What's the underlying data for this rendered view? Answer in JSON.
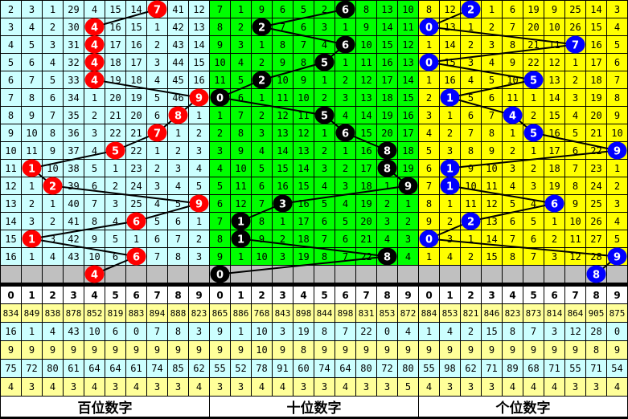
{
  "chart_data": {
    "type": "table",
    "header_digits": [
      "0",
      "1",
      "2",
      "3",
      "4",
      "5",
      "6",
      "7",
      "8",
      "9"
    ],
    "sections": [
      {
        "title": "百位数字",
        "bg": "#ccffff",
        "ball_color": "#ff0000",
        "rows": [
          [
            2,
            3,
            1,
            29,
            4,
            15,
            14,
            null,
            41,
            12
          ],
          [
            3,
            4,
            2,
            30,
            null,
            16,
            15,
            1,
            42,
            13
          ],
          [
            4,
            5,
            3,
            31,
            null,
            17,
            16,
            2,
            43,
            14
          ],
          [
            5,
            6,
            4,
            32,
            null,
            18,
            17,
            3,
            44,
            15
          ],
          [
            6,
            7,
            5,
            33,
            null,
            19,
            18,
            4,
            45,
            16
          ],
          [
            7,
            8,
            6,
            34,
            1,
            20,
            19,
            5,
            46,
            null
          ],
          [
            8,
            9,
            7,
            35,
            2,
            21,
            20,
            6,
            null,
            1
          ],
          [
            9,
            10,
            8,
            36,
            3,
            22,
            21,
            null,
            1,
            2
          ],
          [
            10,
            11,
            9,
            37,
            4,
            null,
            22,
            1,
            2,
            3
          ],
          [
            11,
            null,
            10,
            38,
            5,
            1,
            23,
            2,
            3,
            4
          ],
          [
            12,
            1,
            null,
            39,
            6,
            2,
            24,
            3,
            4,
            5
          ],
          [
            13,
            2,
            1,
            40,
            7,
            3,
            25,
            4,
            5,
            null
          ],
          [
            14,
            3,
            2,
            41,
            8,
            4,
            null,
            5,
            6,
            1
          ],
          [
            15,
            null,
            3,
            42,
            9,
            5,
            1,
            6,
            7,
            2
          ],
          [
            16,
            1,
            4,
            43,
            10,
            6,
            null,
            7,
            8,
            3
          ]
        ],
        "hits": [
          7,
          4,
          4,
          4,
          4,
          9,
          8,
          7,
          5,
          1,
          2,
          9,
          6,
          1,
          6,
          4
        ],
        "stats": [
          [
            834,
            849,
            838,
            878,
            852,
            819,
            883,
            894,
            888,
            823
          ],
          [
            16,
            1,
            4,
            43,
            10,
            6,
            0,
            7,
            8,
            3
          ],
          [
            9,
            9,
            9,
            9,
            9,
            9,
            9,
            9,
            9,
            9
          ],
          [
            75,
            72,
            80,
            61,
            64,
            64,
            61,
            74,
            85,
            62
          ],
          [
            4,
            3,
            4,
            3,
            4,
            3,
            4,
            3,
            3,
            4
          ]
        ]
      },
      {
        "title": "十位数字",
        "bg": "#00ff00",
        "ball_color": "#000000",
        "rows": [
          [
            7,
            1,
            9,
            6,
            5,
            2,
            null,
            8,
            13,
            10
          ],
          [
            8,
            2,
            null,
            7,
            6,
            3,
            1,
            9,
            14,
            11
          ],
          [
            9,
            3,
            1,
            8,
            7,
            4,
            null,
            10,
            15,
            12
          ],
          [
            10,
            4,
            2,
            9,
            8,
            null,
            1,
            11,
            16,
            13
          ],
          [
            11,
            5,
            null,
            10,
            9,
            1,
            2,
            12,
            17,
            14
          ],
          [
            null,
            6,
            1,
            11,
            10,
            2,
            3,
            13,
            18,
            15
          ],
          [
            1,
            7,
            2,
            12,
            11,
            null,
            4,
            14,
            19,
            16
          ],
          [
            2,
            8,
            3,
            13,
            12,
            1,
            null,
            15,
            20,
            17
          ],
          [
            3,
            9,
            4,
            14,
            13,
            2,
            1,
            16,
            null,
            18
          ],
          [
            4,
            10,
            5,
            15,
            14,
            3,
            2,
            17,
            null,
            19
          ],
          [
            5,
            11,
            6,
            16,
            15,
            4,
            3,
            18,
            1,
            null
          ],
          [
            6,
            12,
            7,
            null,
            16,
            5,
            4,
            19,
            2,
            1
          ],
          [
            7,
            null,
            8,
            1,
            17,
            6,
            5,
            20,
            3,
            2
          ],
          [
            8,
            null,
            9,
            2,
            18,
            7,
            6,
            21,
            4,
            3
          ],
          [
            9,
            1,
            10,
            3,
            19,
            8,
            7,
            22,
            null,
            4
          ]
        ],
        "hits": [
          6,
          2,
          6,
          5,
          2,
          0,
          5,
          6,
          8,
          8,
          9,
          3,
          1,
          1,
          8,
          0
        ],
        "stats": [
          [
            865,
            886,
            768,
            843,
            898,
            844,
            898,
            831,
            853,
            872
          ],
          [
            9,
            1,
            10,
            3,
            19,
            8,
            7,
            22,
            0,
            4
          ],
          [
            9,
            9,
            10,
            9,
            8,
            9,
            9,
            9,
            9,
            9
          ],
          [
            55,
            52,
            78,
            91,
            60,
            74,
            64,
            80,
            72,
            80
          ],
          [
            3,
            3,
            4,
            4,
            3,
            3,
            4,
            3,
            3,
            5
          ]
        ]
      },
      {
        "title": "个位数字",
        "bg": "#ffff00",
        "ball_color": "#0000ff",
        "rows": [
          [
            8,
            12,
            null,
            1,
            6,
            19,
            9,
            25,
            14,
            3
          ],
          [
            null,
            13,
            1,
            2,
            7,
            20,
            10,
            26,
            15,
            4
          ],
          [
            1,
            14,
            2,
            3,
            8,
            21,
            11,
            null,
            16,
            5
          ],
          [
            null,
            15,
            3,
            4,
            9,
            22,
            12,
            1,
            17,
            6
          ],
          [
            1,
            16,
            4,
            5,
            10,
            null,
            13,
            2,
            18,
            7
          ],
          [
            2,
            null,
            5,
            6,
            11,
            1,
            14,
            3,
            19,
            8
          ],
          [
            3,
            1,
            6,
            7,
            null,
            2,
            15,
            4,
            20,
            9
          ],
          [
            4,
            2,
            7,
            8,
            1,
            null,
            16,
            5,
            21,
            10
          ],
          [
            5,
            3,
            8,
            9,
            2,
            1,
            17,
            6,
            22,
            null
          ],
          [
            6,
            null,
            9,
            10,
            3,
            2,
            18,
            7,
            23,
            1
          ],
          [
            7,
            null,
            10,
            11,
            4,
            3,
            19,
            8,
            24,
            2
          ],
          [
            8,
            1,
            11,
            12,
            5,
            4,
            null,
            9,
            25,
            3
          ],
          [
            9,
            2,
            null,
            13,
            6,
            5,
            1,
            10,
            26,
            4
          ],
          [
            null,
            3,
            1,
            14,
            7,
            6,
            2,
            11,
            27,
            5
          ],
          [
            1,
            4,
            2,
            15,
            8,
            7,
            3,
            12,
            28,
            null
          ]
        ],
        "hits": [
          2,
          0,
          7,
          0,
          5,
          1,
          4,
          5,
          9,
          1,
          1,
          6,
          2,
          0,
          9,
          8
        ],
        "stats": [
          [
            884,
            853,
            821,
            846,
            823,
            873,
            814,
            864,
            905,
            875
          ],
          [
            1,
            4,
            2,
            15,
            8,
            7,
            3,
            12,
            28,
            0
          ],
          [
            9,
            9,
            9,
            9,
            9,
            9,
            9,
            9,
            8,
            9
          ],
          [
            55,
            98,
            62,
            71,
            89,
            68,
            71,
            55,
            71,
            54
          ],
          [
            4,
            3,
            3,
            3,
            4,
            4,
            4,
            3,
            3,
            4
          ]
        ]
      }
    ],
    "stat_row_colors": [
      "#ffff99",
      "#ccffff",
      "#ffff99",
      "#ccffff",
      "#ffff99"
    ],
    "pending_row_color": "#c0c0c0"
  }
}
